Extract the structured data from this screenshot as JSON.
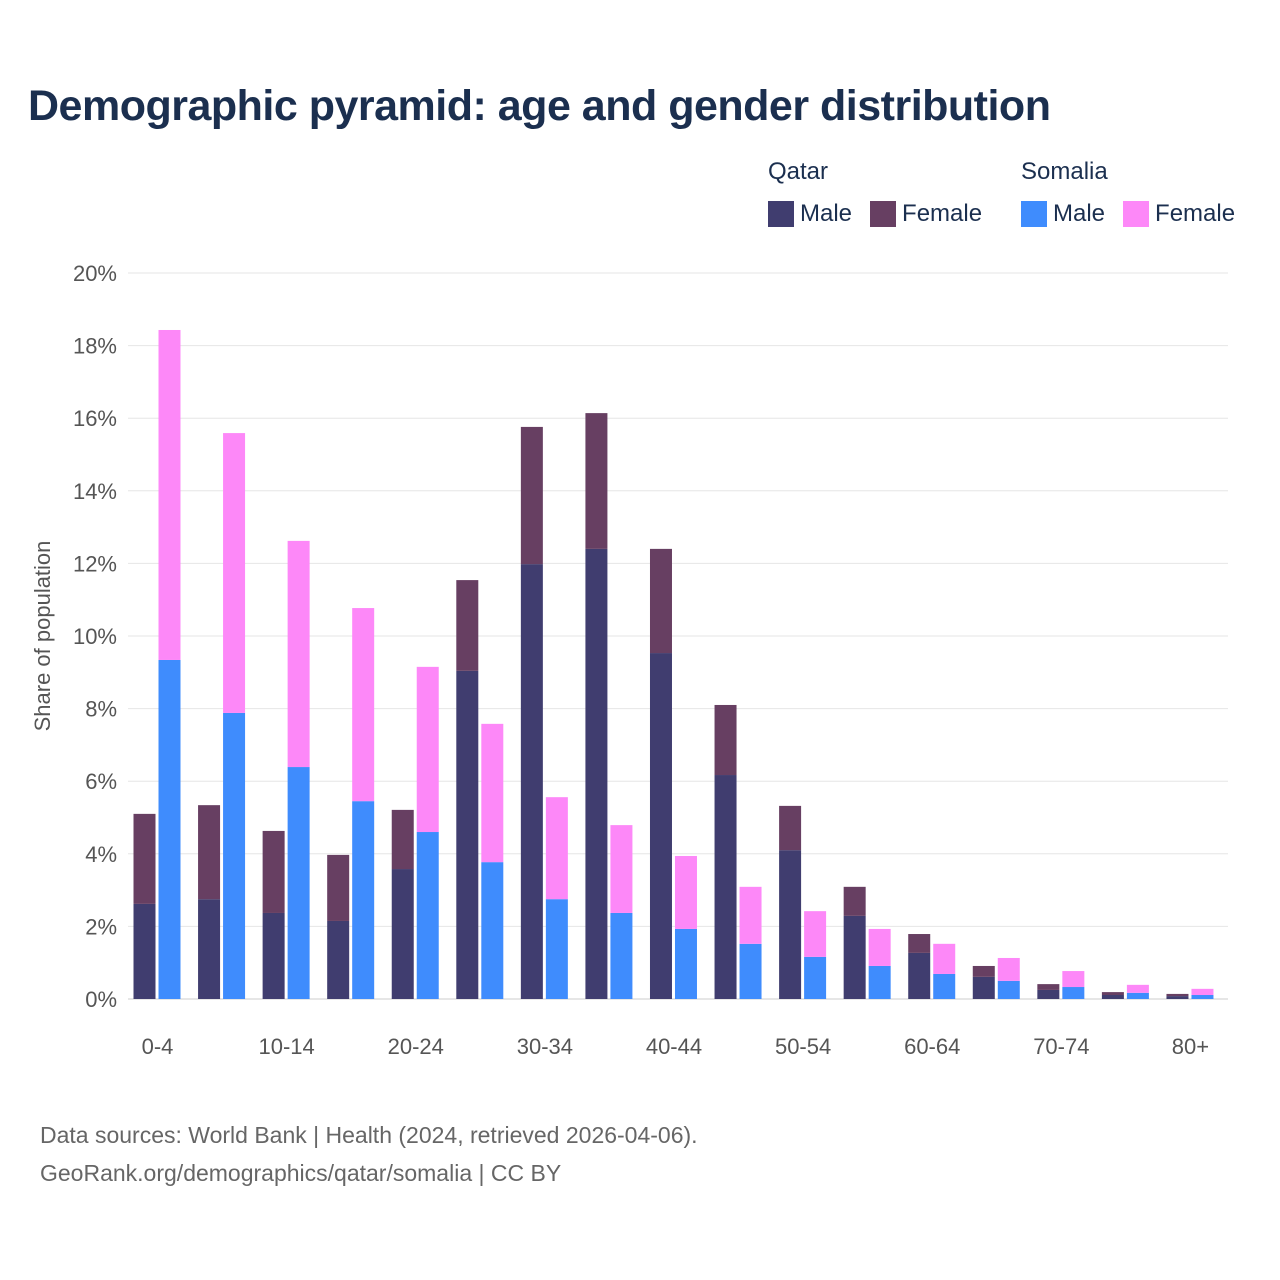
{
  "chart_data": {
    "type": "bar",
    "stacked": true,
    "title": "Demographic pyramid: age and gender distribution",
    "ylabel": "Share of population",
    "xlabel": "",
    "ylim": [
      0,
      20
    ],
    "yticks": [
      "0%",
      "2%",
      "4%",
      "6%",
      "8%",
      "10%",
      "12%",
      "14%",
      "16%",
      "18%",
      "20%"
    ],
    "categories": [
      "0-4",
      "5-9",
      "10-14",
      "15-19",
      "20-24",
      "25-29",
      "30-34",
      "35-39",
      "40-44",
      "45-49",
      "50-54",
      "55-59",
      "60-64",
      "65-69",
      "70-74",
      "75-79",
      "80+"
    ],
    "xtick_labels": [
      "0-4",
      "10-14",
      "20-24",
      "30-34",
      "40-44",
      "50-54",
      "60-64",
      "70-74",
      "80+"
    ],
    "grid": true,
    "legend_position": "top-right",
    "countries": [
      {
        "name": "Qatar",
        "series": [
          {
            "name": "Male",
            "color": "#403d6f",
            "values": [
              2.62,
              2.75,
              2.37,
              2.15,
              3.58,
              9.04,
              11.98,
              12.4,
              9.53,
              6.17,
              4.1,
              2.29,
              1.27,
              0.61,
              0.25,
              0.11,
              0.08
            ]
          },
          {
            "name": "Female",
            "color": "#673f62",
            "values": [
              2.48,
              2.59,
              2.26,
              1.82,
              1.63,
              2.5,
              3.78,
              3.74,
              2.87,
              1.93,
              1.22,
              0.8,
              0.52,
              0.3,
              0.16,
              0.08,
              0.06
            ]
          }
        ]
      },
      {
        "name": "Somalia",
        "series": [
          {
            "name": "Male",
            "color": "#3f8cfd",
            "values": [
              9.34,
              7.88,
              6.39,
              5.45,
              4.6,
              3.77,
              2.75,
              2.37,
              1.93,
              1.52,
              1.16,
              0.91,
              0.69,
              0.5,
              0.33,
              0.17,
              0.11
            ]
          },
          {
            "name": "Female",
            "color": "#fd88f8",
            "values": [
              9.09,
              7.71,
              6.23,
              5.32,
              4.55,
              3.81,
              2.81,
              2.42,
              2.01,
              1.57,
              1.26,
              1.02,
              0.83,
              0.63,
              0.44,
              0.22,
              0.17
            ]
          }
        ]
      }
    ]
  },
  "footer": {
    "source_line": "Data sources: World Bank | Health (2024, retrieved 2026-04-06).",
    "attribution_line": "GeoRank.org/demographics/qatar/somalia | CC BY"
  }
}
